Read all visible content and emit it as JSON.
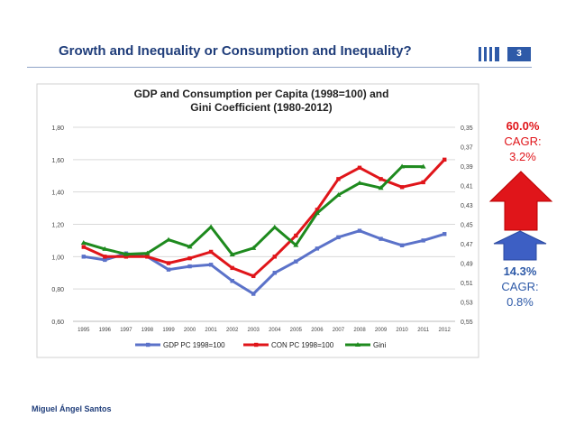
{
  "slide": {
    "title": "Growth and Inequality or Consumption and Inequality?",
    "page_number": "3",
    "author": "Miguel Ángel Santos"
  },
  "annotations": {
    "consumption_pct": "60.0%",
    "consumption_cagr_label": "CAGR:",
    "consumption_cagr": "3.2%",
    "gdp_pct": "14.3%",
    "gdp_cagr_label": "CAGR:",
    "gdp_cagr": "0.8%"
  },
  "colors": {
    "gdp": "#5b72c9",
    "consumption": "#e0151a",
    "gini": "#1e8a1e",
    "arrow_red": "#e0151a",
    "arrow_blue": "#3d5fc4",
    "title": "#1f3d7a"
  },
  "chart_data": {
    "type": "line",
    "title_lines": [
      "GDP and Consumption per Capita (1998=100) and",
      "Gini Coefficient (1980-2012)"
    ],
    "categories": [
      "1995",
      "1996",
      "1997",
      "1998",
      "1999",
      "2000",
      "2001",
      "2002",
      "2003",
      "2004",
      "2005",
      "2006",
      "2007",
      "2008",
      "2009",
      "2010",
      "2011",
      "2012"
    ],
    "left_axis": {
      "ticks": [
        "0,60",
        "0,80",
        "1,00",
        "1,20",
        "1,40",
        "1,60",
        "1,80"
      ],
      "range": [
        0.6,
        1.8
      ]
    },
    "right_axis": {
      "ticks": [
        "0,35",
        "0,37",
        "0,39",
        "0,41",
        "0,43",
        "0,45",
        "0,47",
        "0,49",
        "0,51",
        "0,53",
        "0,55"
      ],
      "range": [
        0.35,
        0.55
      ],
      "inverted": true
    },
    "series": [
      {
        "name": "GDP PC 1998=100",
        "axis": "left",
        "values": [
          1.0,
          0.98,
          1.02,
          1.0,
          0.92,
          0.94,
          0.95,
          0.85,
          0.77,
          0.9,
          0.97,
          1.05,
          1.12,
          1.16,
          1.11,
          1.07,
          1.1,
          1.14
        ]
      },
      {
        "name": "CON PC 1998=100",
        "axis": "left",
        "values": [
          1.06,
          1.0,
          1.0,
          1.0,
          0.96,
          0.99,
          1.03,
          0.93,
          0.88,
          1.0,
          1.13,
          1.29,
          1.48,
          1.55,
          1.48,
          1.43,
          1.46,
          1.6
        ]
      },
      {
        "name": "Gini",
        "axis": "right",
        "values": [
          0.4691,
          0.4755,
          0.4808,
          0.4799,
          0.4659,
          0.4731,
          0.4527,
          0.4812,
          0.4745,
          0.453,
          0.4715,
          0.4385,
          0.4198,
          0.4075,
          0.4125,
          0.3905,
          0.3906,
          null
        ]
      }
    ]
  }
}
